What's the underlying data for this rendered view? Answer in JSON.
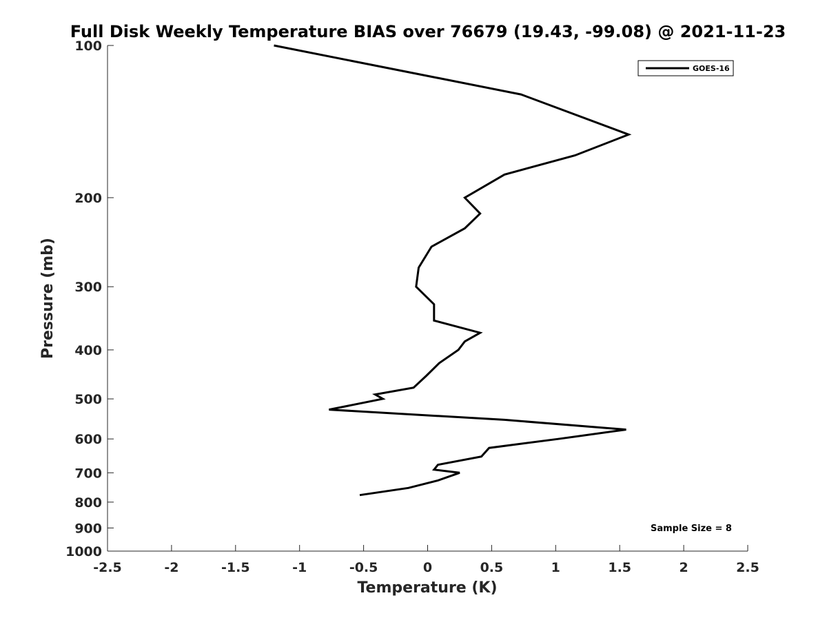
{
  "chart_data": {
    "type": "line",
    "title": "Full Disk Weekly Temperature BIAS over 76679 (19.43, -99.08) @ 2021-11-23",
    "xlabel": "Temperature (K)",
    "ylabel": "Pressure (mb)",
    "xlim": [
      -2.5,
      2.5
    ],
    "ylim": [
      1000,
      100
    ],
    "y_scale": "log",
    "y_reversed": true,
    "grid": false,
    "legend_position": "top-right",
    "x_ticks": [
      -2.5,
      -2,
      -1.5,
      -1,
      -0.5,
      0,
      0.5,
      1,
      1.5,
      2,
      2.5
    ],
    "x_tick_labels": [
      "-2.5",
      "-2",
      "-1.5",
      "-1",
      "-0.5",
      "0",
      "0.5",
      "1",
      "1.5",
      "2",
      "2.5"
    ],
    "y_ticks": [
      100,
      200,
      300,
      400,
      500,
      600,
      700,
      800,
      900,
      1000
    ],
    "y_tick_labels": [
      "100",
      "200",
      "300",
      "400",
      "500",
      "600",
      "700",
      "800",
      "900",
      "1000"
    ],
    "series": [
      {
        "name": "GOES-16",
        "color": "#000000",
        "points": [
          {
            "x": -1.2,
            "y": 100
          },
          {
            "x": 0.73,
            "y": 125
          },
          {
            "x": 1.57,
            "y": 150
          },
          {
            "x": 1.15,
            "y": 165
          },
          {
            "x": 0.6,
            "y": 180
          },
          {
            "x": 0.29,
            "y": 200
          },
          {
            "x": 0.41,
            "y": 215
          },
          {
            "x": 0.29,
            "y": 230
          },
          {
            "x": 0.03,
            "y": 250
          },
          {
            "x": -0.07,
            "y": 275
          },
          {
            "x": -0.09,
            "y": 300
          },
          {
            "x": 0.05,
            "y": 325
          },
          {
            "x": 0.05,
            "y": 350
          },
          {
            "x": 0.41,
            "y": 370
          },
          {
            "x": 0.29,
            "y": 385
          },
          {
            "x": 0.24,
            "y": 400
          },
          {
            "x": 0.09,
            "y": 425
          },
          {
            "x": -0.01,
            "y": 450
          },
          {
            "x": -0.11,
            "y": 475
          },
          {
            "x": -0.41,
            "y": 490
          },
          {
            "x": -0.35,
            "y": 500
          },
          {
            "x": -0.77,
            "y": 525
          },
          {
            "x": 0.6,
            "y": 550
          },
          {
            "x": 1.55,
            "y": 575
          },
          {
            "x": 1.02,
            "y": 600
          },
          {
            "x": 0.48,
            "y": 625
          },
          {
            "x": 0.42,
            "y": 650
          },
          {
            "x": 0.08,
            "y": 675
          },
          {
            "x": 0.05,
            "y": 690
          },
          {
            "x": 0.25,
            "y": 700
          },
          {
            "x": 0.08,
            "y": 725
          },
          {
            "x": -0.15,
            "y": 750
          },
          {
            "x": -0.53,
            "y": 775
          }
        ]
      }
    ],
    "annotations": [
      {
        "text": "Sample Size = 8",
        "position": "bottom-right"
      }
    ]
  }
}
